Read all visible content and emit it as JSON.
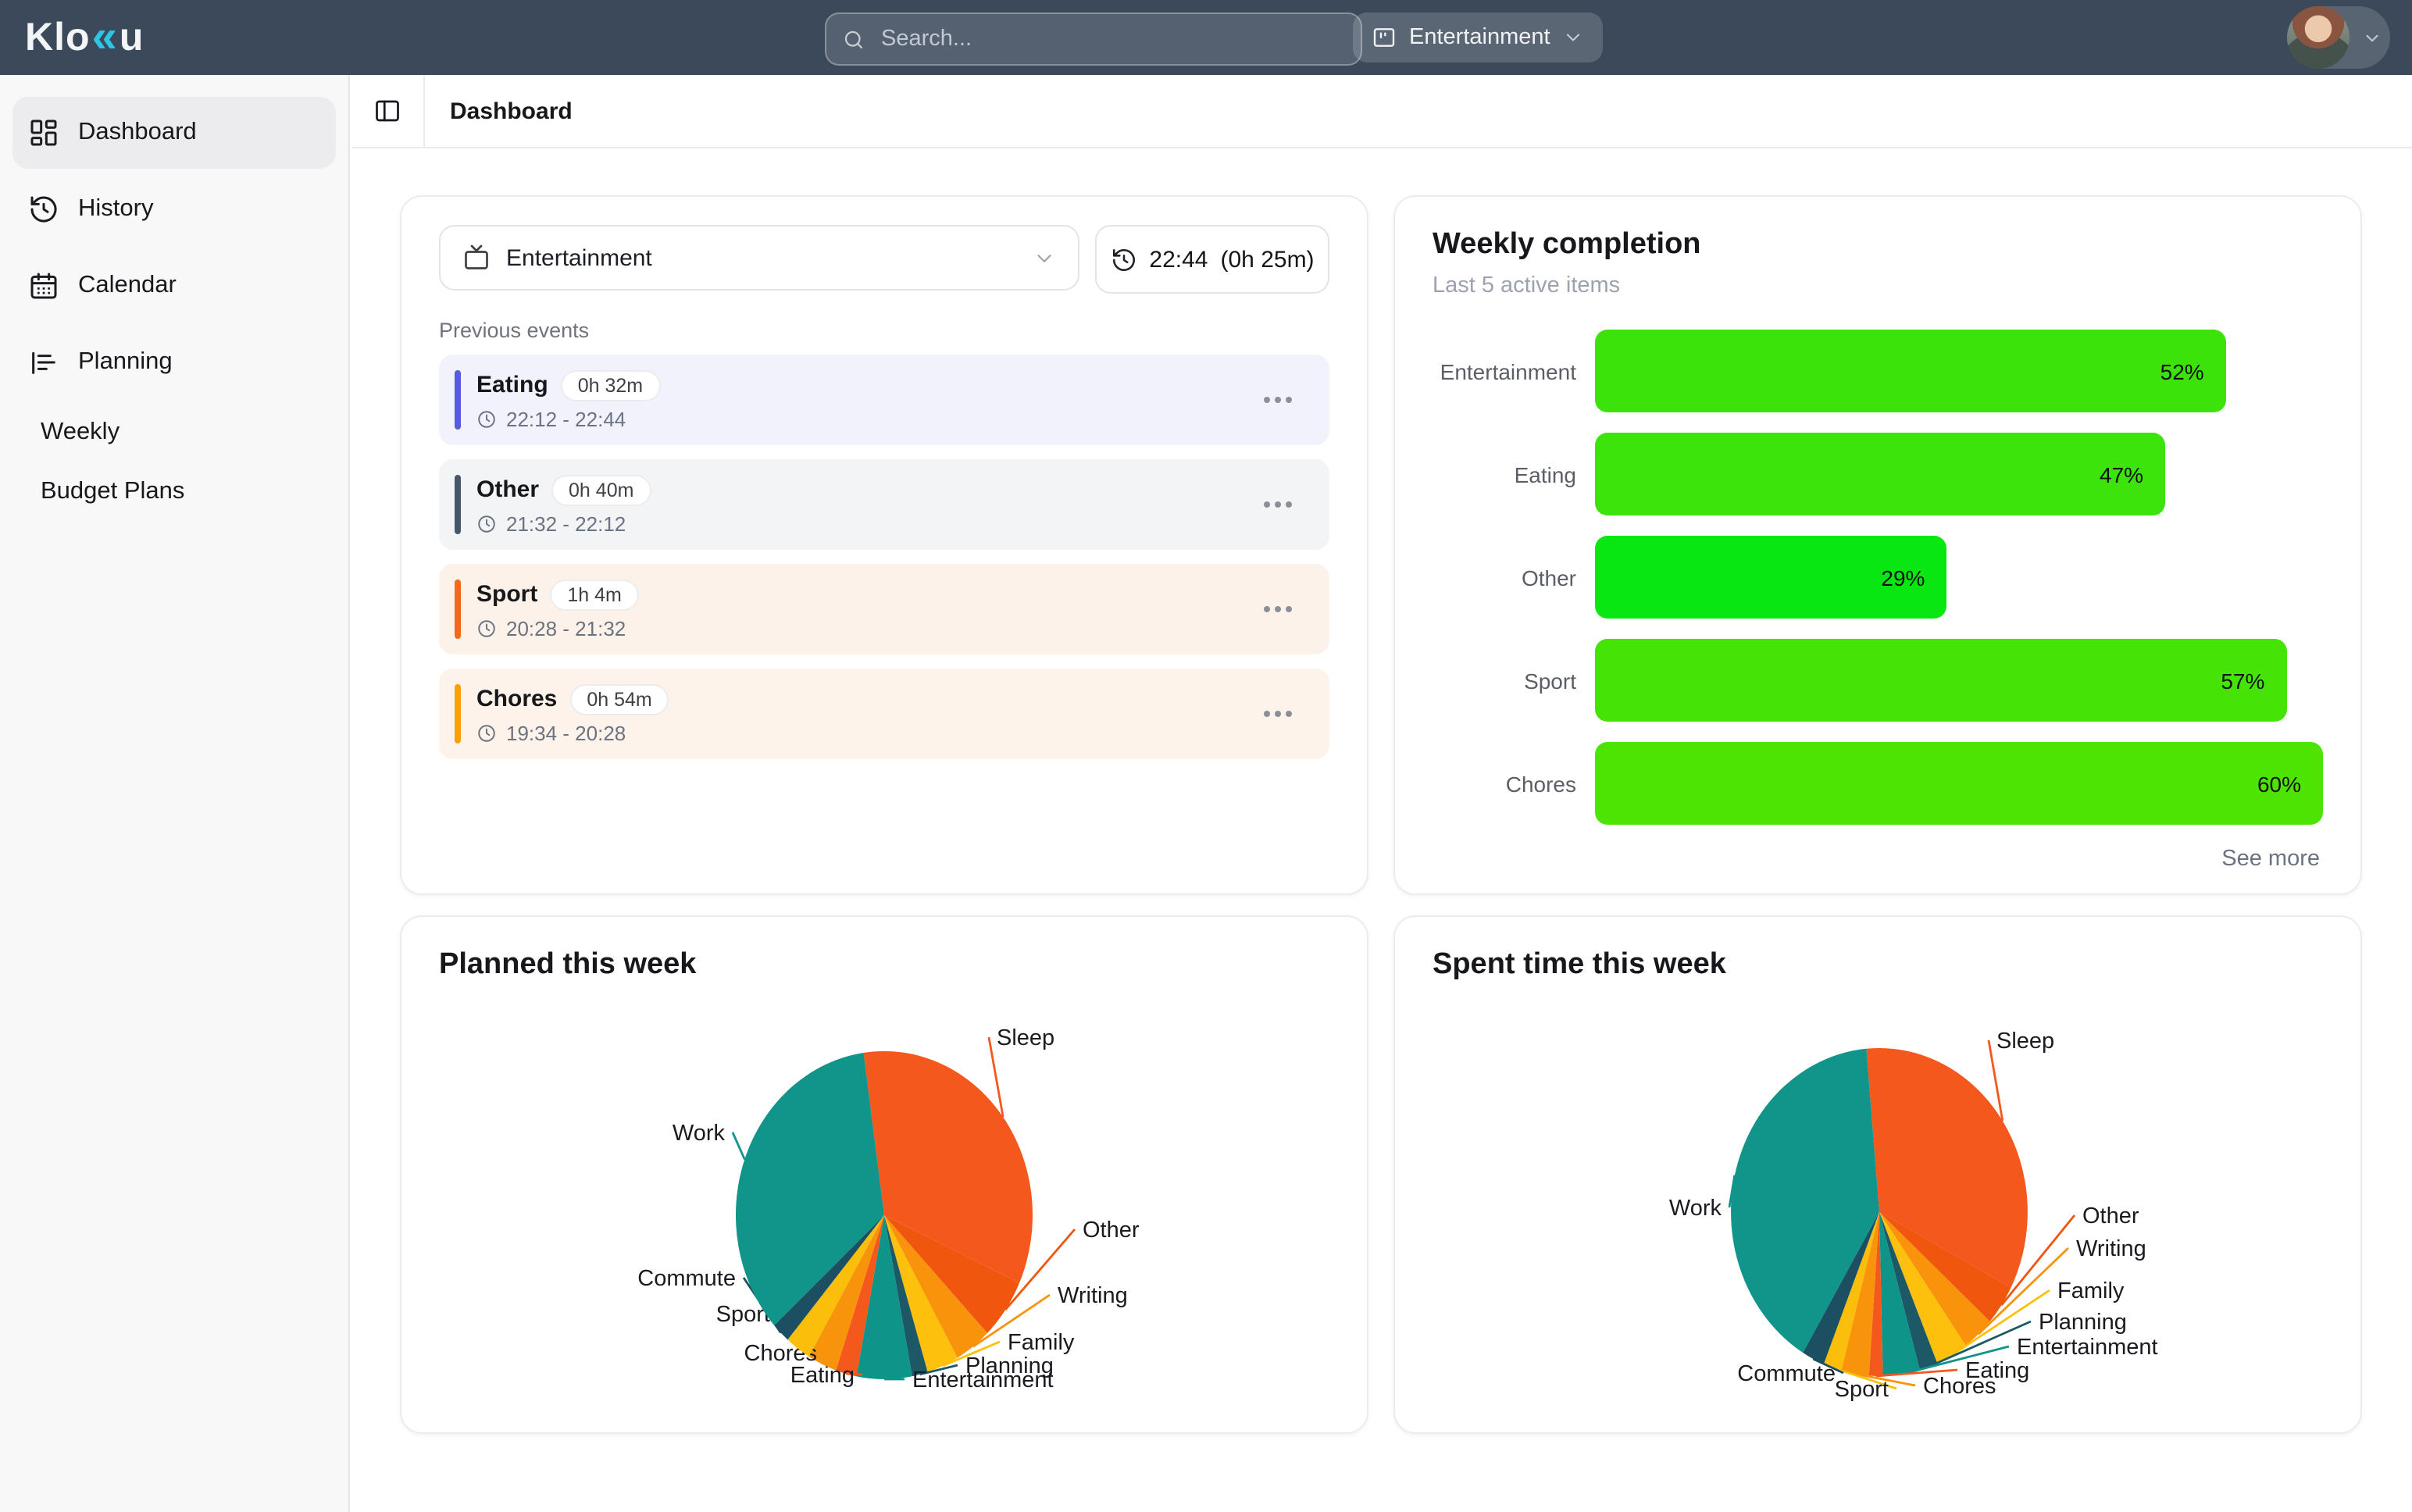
{
  "brand": {
    "prefix": "Klo",
    "chevrons": "«",
    "suffix": "u",
    "chevron_color": "#2ec5e4"
  },
  "navbar": {
    "search_placeholder": "Search...",
    "category_button_label": "Entertainment"
  },
  "sidebar": {
    "items": [
      {
        "label": "Dashboard",
        "icon": "dashboard-grid",
        "active": true
      },
      {
        "label": "History",
        "icon": "history"
      },
      {
        "label": "Calendar",
        "icon": "calendar"
      },
      {
        "label": "Planning",
        "icon": "bar-chart"
      }
    ],
    "sub_items": [
      {
        "label": "Weekly"
      },
      {
        "label": "Budget Plans"
      }
    ]
  },
  "header": {
    "title": "Dashboard"
  },
  "tracker": {
    "select_label": "Entertainment",
    "timer_time": "22:44",
    "timer_elapsed": "(0h 25m)",
    "section_label": "Previous events",
    "events": [
      {
        "title": "Eating",
        "duration": "0h 32m",
        "time_range": "22:12 - 22:44",
        "accent": "#585ae0",
        "bg": "#f1f2fc"
      },
      {
        "title": "Other",
        "duration": "0h 40m",
        "time_range": "21:32 - 22:12",
        "accent": "#47586b",
        "bg": "#f3f4f6"
      },
      {
        "title": "Sport",
        "duration": "1h 4m",
        "time_range": "20:28 - 21:32",
        "accent": "#f5671a",
        "bg": "#fdf2ea"
      },
      {
        "title": "Chores",
        "duration": "0h 54m",
        "time_range": "19:34 - 20:28",
        "accent": "#f9a009",
        "bg": "#fdf3ea"
      }
    ]
  },
  "weekly": {
    "title": "Weekly completion",
    "subtitle": "Last 5 active items",
    "see_more": "See more"
  },
  "chart_data": [
    {
      "type": "bar",
      "orientation": "horizontal",
      "title": "Weekly completion",
      "categories": [
        "Entertainment",
        "Eating",
        "Other",
        "Sport",
        "Chores"
      ],
      "values": [
        52,
        47,
        29,
        57,
        60
      ],
      "unit": "%",
      "scale_max": 60,
      "colors": [
        "#3ce30b",
        "#3ce40c",
        "#09e713",
        "#46e306",
        "#4de404"
      ],
      "value_label_position": "inside-right"
    },
    {
      "type": "pie",
      "title": "Planned this week",
      "labels": [
        "Sleep",
        "Other",
        "Writing",
        "Family",
        "Planning",
        "Entertainment",
        "Eating",
        "Chores",
        "Sport",
        "Commute",
        "Work"
      ],
      "values": [
        34,
        6,
        4,
        3.5,
        1.7,
        6,
        2.3,
        3.2,
        2.8,
        2,
        34.5
      ],
      "unit": "%",
      "colors": [
        "#f4581c",
        "#f0560e",
        "#f8930b",
        "#fcc00d",
        "#1d5867",
        "#0f948a",
        "#f4581c",
        "#f8940b",
        "#fbbe0a",
        "#1d4f63",
        "#11948a"
      ],
      "start_angle": -8,
      "legend": "callout-labels"
    },
    {
      "type": "pie",
      "title": "Spent time this week",
      "labels": [
        "Sleep",
        "Other",
        "Writing",
        "Family",
        "Planning",
        "Entertainment",
        "Eating",
        "Chores",
        "Sport",
        "Commute",
        "Work"
      ],
      "values": [
        34,
        4,
        3.5,
        3.5,
        2,
        4,
        1.5,
        3,
        2,
        2.5,
        40
      ],
      "unit": "%",
      "colors": [
        "#f4581c",
        "#f0560e",
        "#f8930b",
        "#fcc00d",
        "#1d5867",
        "#0f948a",
        "#f4581c",
        "#f8940b",
        "#fbbe0a",
        "#1d4f63",
        "#11948a"
      ],
      "start_angle": -5,
      "legend": "callout-labels"
    }
  ]
}
